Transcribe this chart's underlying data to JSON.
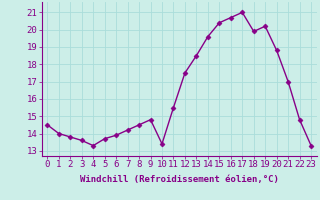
{
  "x": [
    0,
    1,
    2,
    3,
    4,
    5,
    6,
    7,
    8,
    9,
    10,
    11,
    12,
    13,
    14,
    15,
    16,
    17,
    18,
    19,
    20,
    21,
    22,
    23
  ],
  "y": [
    14.5,
    14.0,
    13.8,
    13.6,
    13.3,
    13.7,
    13.9,
    14.2,
    14.5,
    14.8,
    13.4,
    15.5,
    17.5,
    18.5,
    19.6,
    20.4,
    20.7,
    21.0,
    19.9,
    20.2,
    18.8,
    17.0,
    14.8,
    13.3
  ],
  "line_color": "#880088",
  "marker": "D",
  "marker_size": 2.5,
  "bg_color": "#cceee8",
  "grid_color": "#aaddda",
  "xlabel": "Windchill (Refroidissement éolien,°C)",
  "ylabel_ticks": [
    13,
    14,
    15,
    16,
    17,
    18,
    19,
    20,
    21
  ],
  "ylim": [
    12.7,
    21.6
  ],
  "xlim": [
    -0.5,
    23.5
  ],
  "xlabel_fontsize": 6.5,
  "tick_fontsize": 6.5
}
